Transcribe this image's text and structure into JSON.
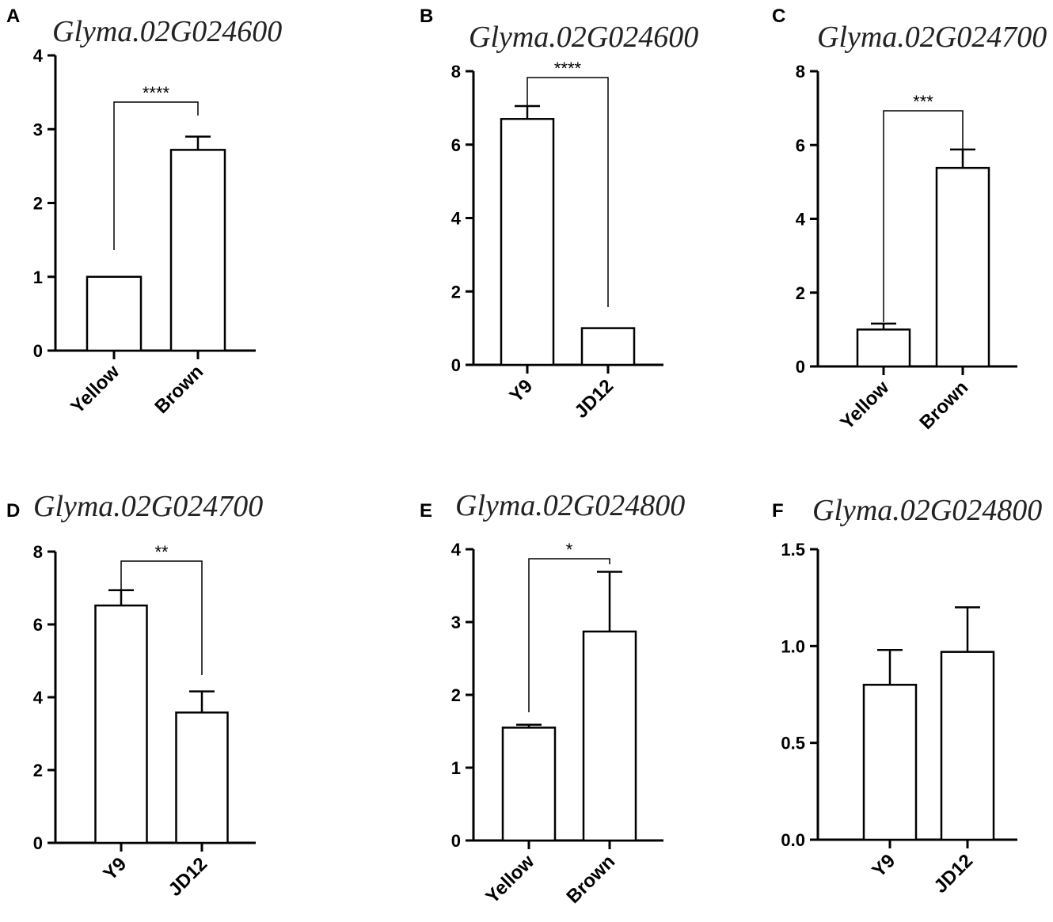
{
  "chart_data": [
    {
      "type": "bar",
      "panel": "A",
      "title": "Glyma.02G024600",
      "categories": [
        "Yellow",
        "Brown"
      ],
      "values": [
        1.0,
        2.72
      ],
      "errors": [
        0.0,
        0.18
      ],
      "ylim": [
        0,
        4
      ],
      "yticks": [
        "0",
        "1",
        "2",
        "3",
        "4"
      ],
      "significance": "****"
    },
    {
      "type": "bar",
      "panel": "B",
      "title": "Glyma.02G024600",
      "categories": [
        "Y9",
        "JD12"
      ],
      "values": [
        6.7,
        1.0
      ],
      "errors": [
        0.35,
        0.0
      ],
      "ylim": [
        0,
        8
      ],
      "yticks": [
        "0",
        "2",
        "4",
        "6",
        "8"
      ],
      "significance": "****"
    },
    {
      "type": "bar",
      "panel": "C",
      "title": "Glyma.02G024700",
      "categories": [
        "Yellow",
        "Brown"
      ],
      "values": [
        1.0,
        5.38
      ],
      "errors": [
        0.16,
        0.5
      ],
      "ylim": [
        0,
        8
      ],
      "yticks": [
        "0",
        "2",
        "4",
        "6",
        "8"
      ],
      "significance": "***"
    },
    {
      "type": "bar",
      "panel": "D",
      "title": "Glyma.02G024700",
      "categories": [
        "Y9",
        "JD12"
      ],
      "values": [
        6.52,
        3.58
      ],
      "errors": [
        0.42,
        0.58
      ],
      "ylim": [
        0,
        8
      ],
      "yticks": [
        "0",
        "2",
        "4",
        "6",
        "8"
      ],
      "significance": "**"
    },
    {
      "type": "bar",
      "panel": "E",
      "title": "Glyma.02G024800",
      "categories": [
        "Yellow",
        "Brown"
      ],
      "values": [
        1.55,
        2.87
      ],
      "errors": [
        0.04,
        0.82
      ],
      "ylim": [
        0,
        4
      ],
      "yticks": [
        "0",
        "1",
        "2",
        "3",
        "4"
      ],
      "significance": "*"
    },
    {
      "type": "bar",
      "panel": "F",
      "title": "Glyma.02G024800",
      "categories": [
        "Y9",
        "JD12"
      ],
      "values": [
        0.8,
        0.97
      ],
      "errors": [
        0.18,
        0.23
      ],
      "ylim": [
        0,
        1.5
      ],
      "yticks": [
        "0.0",
        "0.5",
        "1.0",
        "1.5"
      ],
      "significance": ""
    }
  ]
}
